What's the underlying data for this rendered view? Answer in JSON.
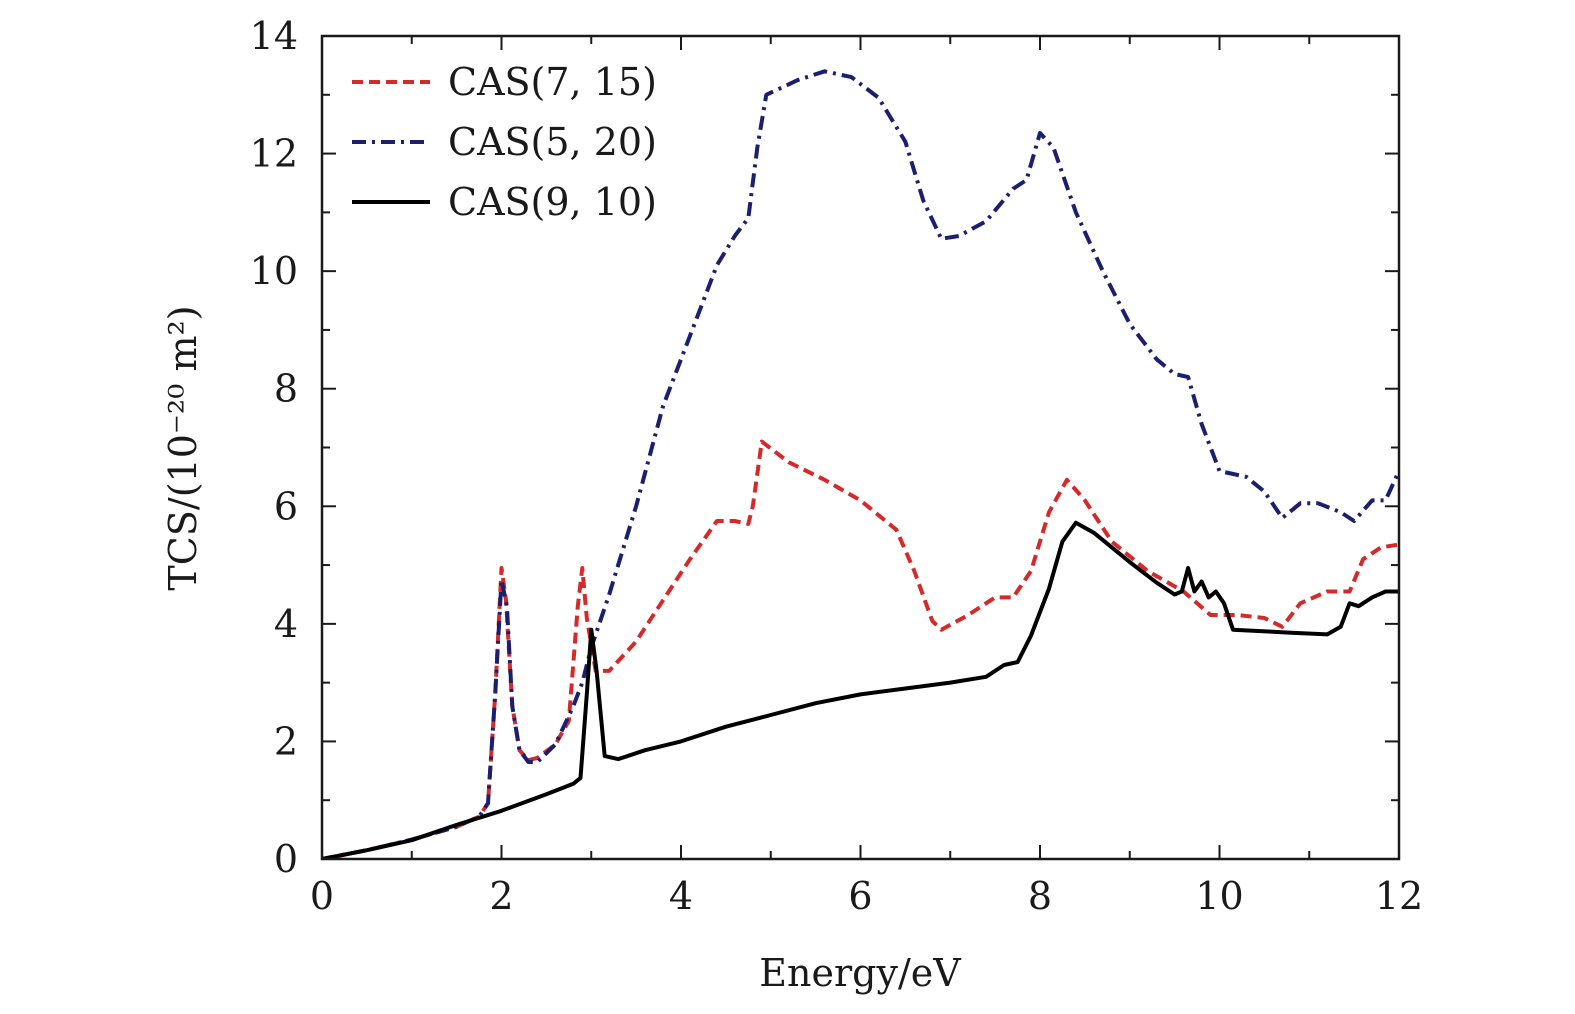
{
  "chart_data": {
    "type": "line",
    "title": "",
    "xlabel": "Energy/eV",
    "ylabel": "TCS/(10⁻²⁰ m²)",
    "xlim": [
      0,
      12
    ],
    "ylim": [
      0,
      14
    ],
    "x_ticks": [
      0,
      2,
      4,
      6,
      8,
      10,
      12
    ],
    "y_ticks": [
      0,
      2,
      4,
      6,
      8,
      10,
      12,
      14
    ],
    "x_tick_labels": [
      "0",
      "2",
      "4",
      "6",
      "8",
      "10",
      "12"
    ],
    "y_tick_labels": [
      "0",
      "2",
      "4",
      "6",
      "8",
      "10",
      "12",
      "14"
    ],
    "grid": false,
    "legend_position": "top-left",
    "series": [
      {
        "name": "CAS(7, 15)",
        "color": "#d42a2a",
        "dash": "dashed",
        "points": [
          [
            0,
            0
          ],
          [
            0.5,
            0.15
          ],
          [
            1,
            0.33
          ],
          [
            1.5,
            0.55
          ],
          [
            1.75,
            0.72
          ],
          [
            1.85,
            0.95
          ],
          [
            1.93,
            2.8
          ],
          [
            2.0,
            4.95
          ],
          [
            2.05,
            4.4
          ],
          [
            2.12,
            2.6
          ],
          [
            2.2,
            1.85
          ],
          [
            2.3,
            1.68
          ],
          [
            2.4,
            1.72
          ],
          [
            2.6,
            1.95
          ],
          [
            2.75,
            2.35
          ],
          [
            2.85,
            4.3
          ],
          [
            2.9,
            4.95
          ],
          [
            2.95,
            4.1
          ],
          [
            3.05,
            3.2
          ],
          [
            3.2,
            3.2
          ],
          [
            3.5,
            3.7
          ],
          [
            3.8,
            4.4
          ],
          [
            4.1,
            5.1
          ],
          [
            4.4,
            5.75
          ],
          [
            4.6,
            5.75
          ],
          [
            4.75,
            5.7
          ],
          [
            4.8,
            6.0
          ],
          [
            4.9,
            7.1
          ],
          [
            5.2,
            6.75
          ],
          [
            5.6,
            6.45
          ],
          [
            6.0,
            6.1
          ],
          [
            6.4,
            5.6
          ],
          [
            6.6,
            4.9
          ],
          [
            6.8,
            4.05
          ],
          [
            6.9,
            3.9
          ],
          [
            7.2,
            4.15
          ],
          [
            7.5,
            4.45
          ],
          [
            7.7,
            4.45
          ],
          [
            7.9,
            4.9
          ],
          [
            8.1,
            5.9
          ],
          [
            8.3,
            6.45
          ],
          [
            8.5,
            6.1
          ],
          [
            8.8,
            5.4
          ],
          [
            9.2,
            4.9
          ],
          [
            9.6,
            4.55
          ],
          [
            9.9,
            4.15
          ],
          [
            10.2,
            4.15
          ],
          [
            10.5,
            4.1
          ],
          [
            10.7,
            3.95
          ],
          [
            10.9,
            4.35
          ],
          [
            11.2,
            4.55
          ],
          [
            11.45,
            4.55
          ],
          [
            11.6,
            5.1
          ],
          [
            11.8,
            5.3
          ],
          [
            12.0,
            5.35
          ]
        ]
      },
      {
        "name": "CAS(5, 20)",
        "color": "#1c1f6e",
        "dash": "dash-dot",
        "points": [
          [
            0,
            0
          ],
          [
            0.5,
            0.15
          ],
          [
            1,
            0.33
          ],
          [
            1.5,
            0.55
          ],
          [
            1.75,
            0.72
          ],
          [
            1.85,
            0.95
          ],
          [
            1.93,
            2.8
          ],
          [
            2.0,
            4.75
          ],
          [
            2.06,
            4.3
          ],
          [
            2.12,
            2.6
          ],
          [
            2.2,
            1.85
          ],
          [
            2.3,
            1.65
          ],
          [
            2.4,
            1.65
          ],
          [
            2.6,
            1.95
          ],
          [
            2.8,
            2.6
          ],
          [
            2.9,
            3.0
          ],
          [
            3.0,
            3.6
          ],
          [
            3.2,
            4.5
          ],
          [
            3.5,
            6.0
          ],
          [
            3.8,
            7.7
          ],
          [
            4.1,
            8.9
          ],
          [
            4.4,
            10.1
          ],
          [
            4.6,
            10.6
          ],
          [
            4.75,
            10.9
          ],
          [
            4.85,
            12.1
          ],
          [
            4.95,
            13.0
          ],
          [
            5.3,
            13.25
          ],
          [
            5.6,
            13.4
          ],
          [
            5.9,
            13.3
          ],
          [
            6.2,
            12.95
          ],
          [
            6.5,
            12.2
          ],
          [
            6.7,
            11.2
          ],
          [
            6.9,
            10.55
          ],
          [
            7.1,
            10.6
          ],
          [
            7.4,
            10.85
          ],
          [
            7.7,
            11.4
          ],
          [
            7.85,
            11.55
          ],
          [
            8.0,
            12.35
          ],
          [
            8.15,
            12.1
          ],
          [
            8.4,
            11.0
          ],
          [
            8.7,
            10.0
          ],
          [
            9.0,
            9.1
          ],
          [
            9.3,
            8.5
          ],
          [
            9.5,
            8.25
          ],
          [
            9.65,
            8.2
          ],
          [
            9.8,
            7.4
          ],
          [
            10.0,
            6.6
          ],
          [
            10.3,
            6.5
          ],
          [
            10.5,
            6.25
          ],
          [
            10.7,
            5.8
          ],
          [
            10.9,
            6.05
          ],
          [
            11.1,
            6.05
          ],
          [
            11.35,
            5.9
          ],
          [
            11.5,
            5.75
          ],
          [
            11.7,
            6.1
          ],
          [
            11.85,
            6.1
          ],
          [
            12.0,
            6.6
          ]
        ]
      },
      {
        "name": "CAS(9, 10)",
        "color": "#000000",
        "dash": "solid",
        "points": [
          [
            0,
            0
          ],
          [
            0.5,
            0.15
          ],
          [
            1,
            0.32
          ],
          [
            1.5,
            0.58
          ],
          [
            2.0,
            0.82
          ],
          [
            2.5,
            1.1
          ],
          [
            2.8,
            1.28
          ],
          [
            2.88,
            1.38
          ],
          [
            2.95,
            2.8
          ],
          [
            3.0,
            3.9
          ],
          [
            3.06,
            3.2
          ],
          [
            3.15,
            1.75
          ],
          [
            3.3,
            1.7
          ],
          [
            3.6,
            1.85
          ],
          [
            4.0,
            2.0
          ],
          [
            4.5,
            2.25
          ],
          [
            5.0,
            2.45
          ],
          [
            5.5,
            2.65
          ],
          [
            6.0,
            2.8
          ],
          [
            6.5,
            2.9
          ],
          [
            7.0,
            3.0
          ],
          [
            7.4,
            3.1
          ],
          [
            7.6,
            3.3
          ],
          [
            7.75,
            3.35
          ],
          [
            7.9,
            3.8
          ],
          [
            8.1,
            4.6
          ],
          [
            8.25,
            5.4
          ],
          [
            8.4,
            5.72
          ],
          [
            8.6,
            5.55
          ],
          [
            9.0,
            5.05
          ],
          [
            9.3,
            4.7
          ],
          [
            9.5,
            4.5
          ],
          [
            9.58,
            4.55
          ],
          [
            9.65,
            4.95
          ],
          [
            9.72,
            4.55
          ],
          [
            9.8,
            4.72
          ],
          [
            9.88,
            4.45
          ],
          [
            9.96,
            4.55
          ],
          [
            10.05,
            4.35
          ],
          [
            10.15,
            3.9
          ],
          [
            10.4,
            3.88
          ],
          [
            10.8,
            3.85
          ],
          [
            11.2,
            3.82
          ],
          [
            11.35,
            3.95
          ],
          [
            11.45,
            4.35
          ],
          [
            11.55,
            4.3
          ],
          [
            11.7,
            4.45
          ],
          [
            11.85,
            4.55
          ],
          [
            12.0,
            4.55
          ]
        ]
      }
    ]
  }
}
